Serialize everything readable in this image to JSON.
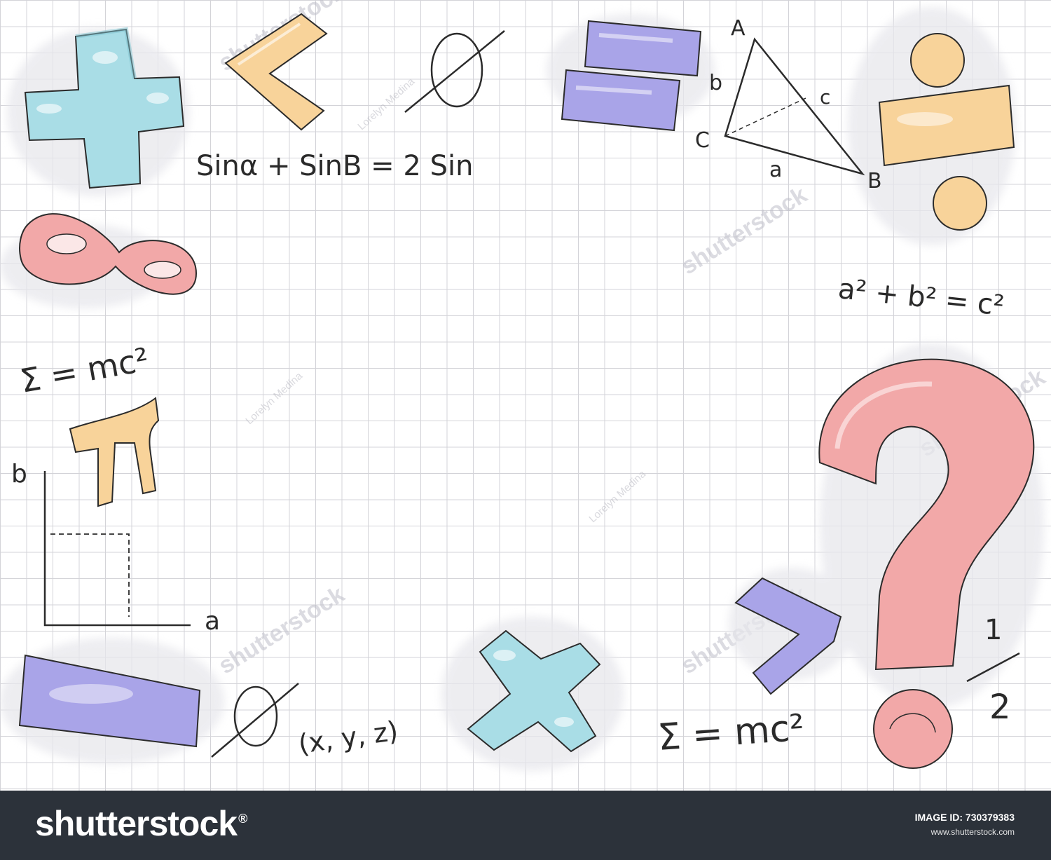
{
  "formulas": {
    "sine_sum": "Sinα + SinB = 2 Sin",
    "emc_left": "Σ = mc²",
    "pythagoras": "a² + b² = c²",
    "emc_bottom": "Σ = mc²",
    "xyz": "(x, y, z)",
    "empty_set_top": "Ø",
    "empty_set_bottom": "Ø",
    "pi": "π"
  },
  "graph": {
    "y_label": "b",
    "x_label": "a"
  },
  "triangle": {
    "vertex_a": "A",
    "vertex_b": "B",
    "vertex_c": "C",
    "side_a": "a",
    "side_b": "b",
    "side_c": "c"
  },
  "fraction": {
    "numerator": "1",
    "denominator": "2"
  },
  "watermarks": {
    "brand": "shutterstock",
    "author": "Lorelyn Medina"
  },
  "footer": {
    "brand": "shutterstock",
    "brand_mark": "®",
    "image_id_label": "IMAGE ID: 730379383",
    "url": "www.shutterstock.com"
  },
  "colors": {
    "blue": "#a9dde6",
    "orange": "#f8d39a",
    "purple": "#a9a4e8",
    "pink": "#f2a8a8",
    "footer_bg": "#2c323a"
  },
  "icons": [
    "plus-icon",
    "less-than-icon",
    "equals-icon",
    "divide-icon",
    "infinity-icon",
    "pi-icon",
    "question-mark-icon",
    "multiply-icon",
    "greater-than-icon",
    "minus-icon",
    "empty-set-icon",
    "triangle-icon",
    "graph-icon"
  ]
}
